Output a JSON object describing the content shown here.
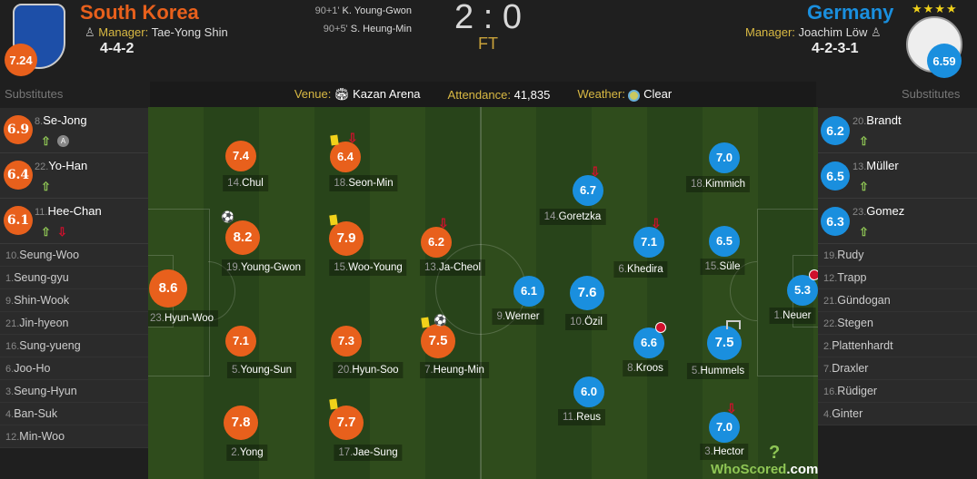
{
  "colors": {
    "home": "#e8601c",
    "away": "#1a8fde",
    "label": "#d9b943",
    "sub_in": "#8fc655",
    "sub_out": "#d0102c",
    "yellow": "#f1d21a"
  },
  "home": {
    "name": "South Korea",
    "manager_label": "Manager:",
    "manager": "Tae-Yong Shin",
    "formation": "4-4-2",
    "rating": "7.24",
    "crest_icon": "korea-tiger-crest"
  },
  "away": {
    "name": "Germany",
    "stars": "★★★★",
    "manager_label": "Manager:",
    "manager": "Joachim Löw",
    "formation": "4-2-3-1",
    "rating": "6.59",
    "crest_icon": "germany-eagle-crest"
  },
  "score": {
    "home": "2",
    "sep": ":",
    "away": "0",
    "status": "FT"
  },
  "goals": [
    {
      "minute": "90+1'",
      "player": "K. Young-Gwon"
    },
    {
      "minute": "90+5'",
      "player": "S. Heung-Min"
    }
  ],
  "info": {
    "venue_label": "Venue:",
    "venue": "Kazan Arena",
    "attendance_label": "Attendance:",
    "attendance": "41,835",
    "weather_label": "Weather:",
    "weather": "Clear"
  },
  "substitutes_label": "Substitutes",
  "home_subs_used": [
    {
      "num": "8.",
      "name": "Se-Jong",
      "rating": "6.9",
      "icons": [
        "sub-in",
        "assist"
      ]
    },
    {
      "num": "22.",
      "name": "Yo-Han",
      "rating": "6.4",
      "icons": [
        "sub-in"
      ]
    },
    {
      "num": "11.",
      "name": "Hee-Chan",
      "rating": "6.1",
      "icons": [
        "sub-in",
        "sub-out"
      ]
    }
  ],
  "home_bench": [
    {
      "num": "10.",
      "name": "Seung-Woo"
    },
    {
      "num": "1.",
      "name": "Seung-gyu"
    },
    {
      "num": "9.",
      "name": "Shin-Wook"
    },
    {
      "num": "21.",
      "name": "Jin-hyeon"
    },
    {
      "num": "16.",
      "name": "Sung-yueng"
    },
    {
      "num": "6.",
      "name": "Joo-Ho"
    },
    {
      "num": "3.",
      "name": "Seung-Hyun"
    },
    {
      "num": "4.",
      "name": "Ban-Suk"
    },
    {
      "num": "12.",
      "name": "Min-Woo"
    }
  ],
  "away_subs_used": [
    {
      "num": "20.",
      "name": "Brandt",
      "rating": "6.2",
      "icons": [
        "sub-in"
      ]
    },
    {
      "num": "13.",
      "name": "Müller",
      "rating": "6.5",
      "icons": [
        "sub-in"
      ]
    },
    {
      "num": "23.",
      "name": "Gomez",
      "rating": "6.3",
      "icons": [
        "sub-in"
      ]
    }
  ],
  "away_bench": [
    {
      "num": "19.",
      "name": "Rudy"
    },
    {
      "num": "12.",
      "name": "Trapp"
    },
    {
      "num": "21.",
      "name": "Gündogan"
    },
    {
      "num": "22.",
      "name": "Stegen"
    },
    {
      "num": "2.",
      "name": "Plattenhardt"
    },
    {
      "num": "7.",
      "name": "Draxler"
    },
    {
      "num": "16.",
      "name": "Rüdiger"
    },
    {
      "num": "4.",
      "name": "Ginter"
    }
  ],
  "lineup_home": [
    {
      "num": "23.",
      "name": "Hyun-Woo",
      "rating": "8.6",
      "icons": []
    },
    {
      "num": "14.",
      "name": "Chul",
      "rating": "7.4",
      "icons": []
    },
    {
      "num": "19.",
      "name": "Young-Gwon",
      "rating": "8.2",
      "icons": [
        "goal"
      ]
    },
    {
      "num": "5.",
      "name": "Young-Sun",
      "rating": "7.1",
      "icons": []
    },
    {
      "num": "2.",
      "name": "Yong",
      "rating": "7.8",
      "icons": []
    },
    {
      "num": "18.",
      "name": "Seon-Min",
      "rating": "6.4",
      "icons": [
        "yellow-card",
        "sub-out"
      ]
    },
    {
      "num": "15.",
      "name": "Woo-Young",
      "rating": "7.9",
      "icons": [
        "yellow-card"
      ]
    },
    {
      "num": "20.",
      "name": "Hyun-Soo",
      "rating": "7.3",
      "icons": []
    },
    {
      "num": "17.",
      "name": "Jae-Sung",
      "rating": "7.7",
      "icons": [
        "yellow-card"
      ]
    },
    {
      "num": "13.",
      "name": "Ja-Cheol",
      "rating": "6.2",
      "icons": [
        "sub-out"
      ]
    },
    {
      "num": "7.",
      "name": "Heung-Min",
      "rating": "7.5",
      "icons": [
        "yellow-card",
        "goal"
      ]
    }
  ],
  "lineup_away": [
    {
      "num": "9.",
      "name": "Werner",
      "rating": "6.1",
      "icons": []
    },
    {
      "num": "10.",
      "name": "Özil",
      "rating": "7.6",
      "icons": []
    },
    {
      "num": "11.",
      "name": "Reus",
      "rating": "6.0",
      "icons": []
    },
    {
      "num": "14.",
      "name": "Goretzka",
      "rating": "6.7",
      "icons": [
        "sub-out"
      ]
    },
    {
      "num": "6.",
      "name": "Khedira",
      "rating": "7.1",
      "icons": [
        "sub-out"
      ]
    },
    {
      "num": "8.",
      "name": "Kroos",
      "rating": "6.6",
      "icons": [
        "error"
      ]
    },
    {
      "num": "18.",
      "name": "Kimmich",
      "rating": "7.0",
      "icons": []
    },
    {
      "num": "15.",
      "name": "Süle",
      "rating": "6.5",
      "icons": []
    },
    {
      "num": "5.",
      "name": "Hummels",
      "rating": "7.5",
      "icons": [
        "missed-chance"
      ]
    },
    {
      "num": "3.",
      "name": "Hector",
      "rating": "7.0",
      "icons": [
        "sub-out"
      ]
    },
    {
      "num": "1.",
      "name": "Neuer",
      "rating": "5.3",
      "icons": [
        "error"
      ]
    }
  ],
  "logo": {
    "text1": "WhoScored",
    "text2": ".com"
  }
}
